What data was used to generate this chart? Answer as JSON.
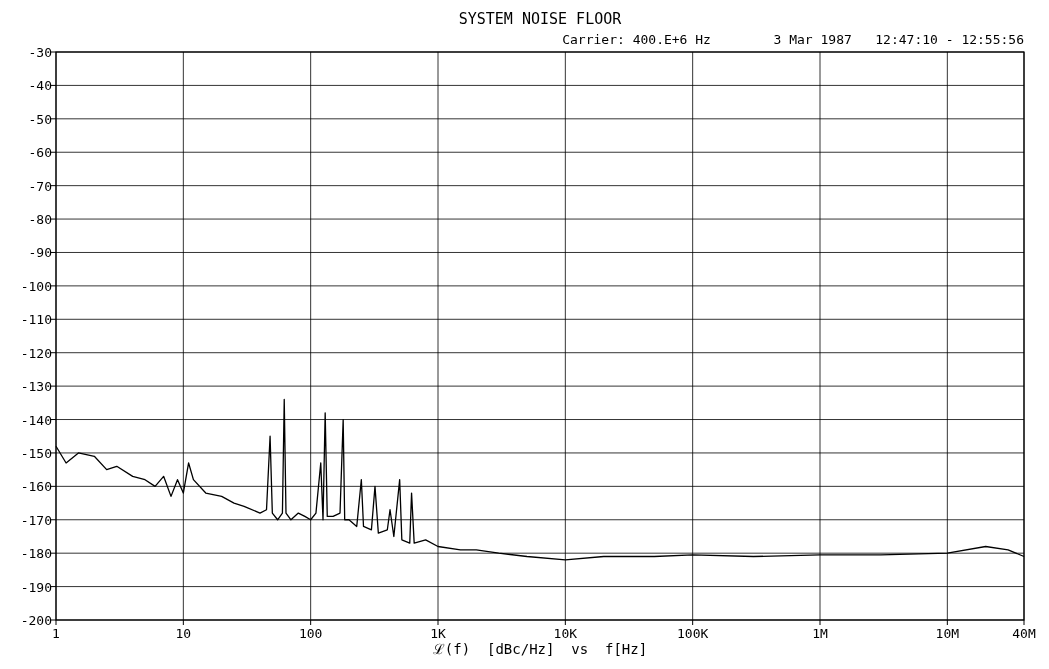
{
  "chart_data": {
    "type": "line",
    "title": "SYSTEM NOISE FLOOR",
    "subtitle": "Carrier: 400.E+6 Hz        3 Mar 1987   12:47:10 - 12:55:56",
    "xlabel": "ℒ(f)  [dBc/Hz]  vs  f[Hz]",
    "log": "x",
    "grid": true,
    "xlim": [
      1,
      40000000
    ],
    "ylim": [
      -200,
      -30
    ],
    "xticks": [
      1,
      10,
      100,
      {
        "value": 1000,
        "label": "1K"
      },
      {
        "value": 10000,
        "label": "10K"
      },
      {
        "value": 100000,
        "label": "100K"
      },
      {
        "value": 1000000,
        "label": "1M"
      },
      {
        "value": 10000000,
        "label": "10M"
      },
      {
        "value": 40000000,
        "label": "40M"
      }
    ],
    "yticks": [
      -200,
      -190,
      -180,
      -170,
      -160,
      -150,
      -140,
      -130,
      -120,
      -110,
      -100,
      -90,
      -80,
      -70,
      -60,
      -50,
      -40,
      -30
    ],
    "series": [
      {
        "color": "#000000",
        "x": [
          1,
          1.2,
          1.5,
          2,
          2.5,
          3,
          4,
          5,
          6,
          7,
          8,
          9,
          10,
          11,
          12,
          15,
          20,
          25,
          30,
          40,
          45,
          48,
          50,
          55,
          60,
          62,
          64,
          70,
          80,
          90,
          100,
          110,
          120,
          125,
          130,
          135,
          150,
          170,
          180,
          185,
          200,
          230,
          250,
          260,
          300,
          320,
          340,
          400,
          420,
          450,
          500,
          520,
          600,
          620,
          650,
          800,
          1000,
          1500,
          2000,
          3000,
          5000,
          10000,
          20000,
          50000,
          100000,
          300000,
          1000000,
          3000000,
          10000000,
          20000000,
          30000000,
          40000000
        ],
        "values": [
          -148,
          -153,
          -150,
          -151,
          -155,
          -154,
          -157,
          -158,
          -160,
          -157,
          -163,
          -158,
          -162,
          -153,
          -158,
          -162,
          -163,
          -165,
          -166,
          -168,
          -167,
          -145,
          -168,
          -170,
          -168,
          -134,
          -168,
          -170,
          -168,
          -169,
          -170,
          -168,
          -153,
          -170,
          -138,
          -169,
          -169,
          -168,
          -140,
          -170,
          -170,
          -172,
          -158,
          -172,
          -173,
          -160,
          -174,
          -173,
          -167,
          -175,
          -158,
          -176,
          -177,
          -162,
          -177,
          -176,
          -178,
          -179,
          -179,
          -180,
          -181,
          -182,
          -181,
          -181,
          -180.5,
          -181,
          -180.5,
          -180.5,
          -180,
          -178,
          -179,
          -181
        ]
      }
    ]
  }
}
